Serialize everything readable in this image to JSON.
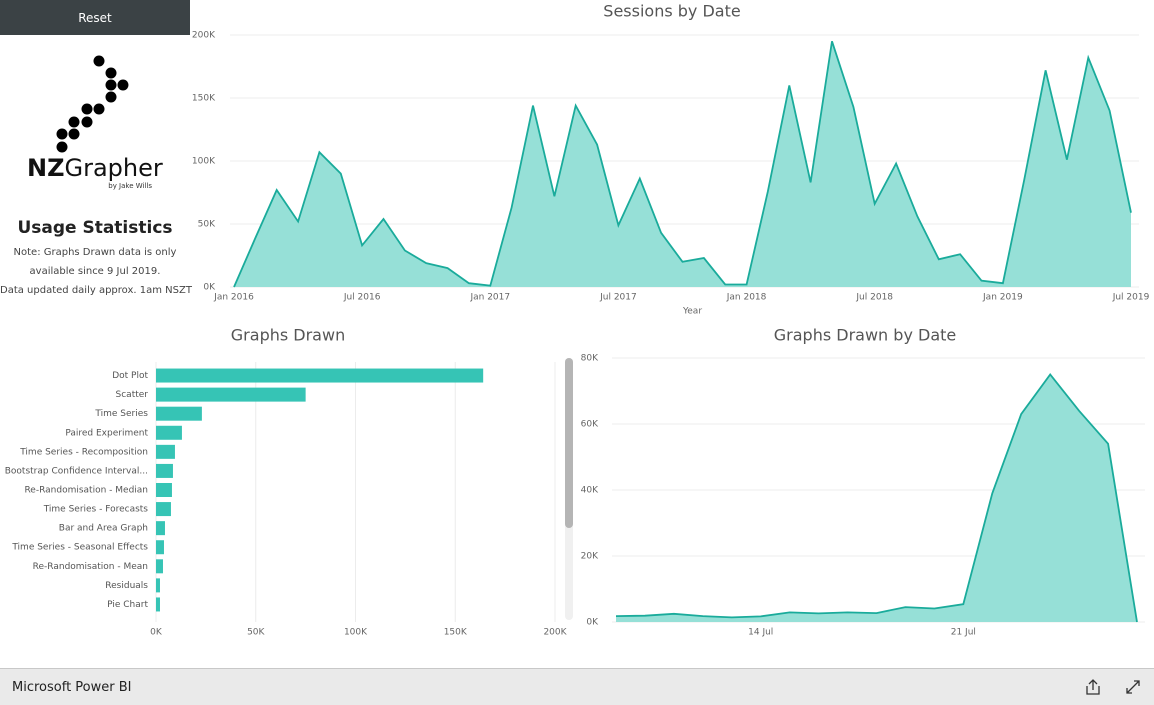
{
  "sidebar": {
    "button": "Reset",
    "logo": {
      "bold": "NZ",
      "rest": "Grapher",
      "byline": "by Jake Wills"
    },
    "heading": "Usage Statistics",
    "notes": [
      "Note: Graphs Drawn data is only",
      "available since 9 Jul 2019.",
      "Data updated daily approx. 1am NSZT"
    ]
  },
  "footer": {
    "title": "Microsoft Power BI"
  },
  "chart_data": [
    {
      "type": "area",
      "title": "Sessions by Date",
      "x_label": "Year",
      "color": "#1aab9b",
      "fill": "#96e0d7",
      "grid": true,
      "x": [
        "2016-01",
        "2016-02",
        "2016-03",
        "2016-04",
        "2016-05",
        "2016-06",
        "2016-07",
        "2016-08",
        "2016-09",
        "2016-10",
        "2016-11",
        "2016-12",
        "2017-01",
        "2017-02",
        "2017-03",
        "2017-04",
        "2017-05",
        "2017-06",
        "2017-07",
        "2017-08",
        "2017-09",
        "2017-10",
        "2017-11",
        "2017-12",
        "2018-01",
        "2018-02",
        "2018-03",
        "2018-04",
        "2018-05",
        "2018-06",
        "2018-07",
        "2018-08",
        "2018-09",
        "2018-10",
        "2018-11",
        "2018-12",
        "2019-01",
        "2019-02",
        "2019-03",
        "2019-04",
        "2019-05",
        "2019-06",
        "2019-07"
      ],
      "values": [
        0,
        39000,
        77000,
        52000,
        107000,
        90000,
        33000,
        54000,
        29000,
        19000,
        15000,
        3000,
        1000,
        63000,
        144000,
        72000,
        144000,
        113000,
        49000,
        86000,
        43000,
        20000,
        23000,
        2000,
        2000,
        76000,
        160000,
        83000,
        195000,
        143000,
        66000,
        98000,
        56000,
        22000,
        26000,
        5000,
        3000,
        85000,
        172000,
        101000,
        182000,
        140000,
        59000
      ],
      "xlim": [
        "2016-01",
        "2019-07"
      ],
      "xticks": [
        {
          "value": "2016-01",
          "label": "Jan 2016"
        },
        {
          "value": "2016-07",
          "label": "Jul 2016"
        },
        {
          "value": "2017-01",
          "label": "Jan 2017"
        },
        {
          "value": "2017-07",
          "label": "Jul 2017"
        },
        {
          "value": "2018-01",
          "label": "Jan 2018"
        },
        {
          "value": "2018-07",
          "label": "Jul 2018"
        },
        {
          "value": "2019-01",
          "label": "Jan 2019"
        },
        {
          "value": "2019-07",
          "label": "Jul 2019"
        }
      ],
      "ylim": [
        0,
        200000
      ],
      "yticks": [
        {
          "value": 0,
          "label": "0K"
        },
        {
          "value": 50000,
          "label": "50K"
        },
        {
          "value": 100000,
          "label": "100K"
        },
        {
          "value": 150000,
          "label": "150K"
        },
        {
          "value": 200000,
          "label": "200K"
        }
      ]
    },
    {
      "type": "hbar",
      "title": "Graphs Drawn",
      "color": "#36c4b5",
      "grid": true,
      "categories": [
        "Dot Plot",
        "Scatter",
        "Time Series",
        "Paired Experiment",
        "Time Series - Recomposition",
        "Bootstrap Confidence Interval...",
        "Re-Randomisation - Median",
        "Time Series - Forecasts",
        "Bar and Area Graph",
        "Time Series - Seasonal Effects",
        "Re-Randomisation - Mean",
        "Residuals",
        "Pie Chart"
      ],
      "values": [
        164000,
        75000,
        23000,
        13000,
        9500,
        8500,
        8000,
        7500,
        4500,
        4000,
        3500,
        2000,
        2000
      ],
      "xlim": [
        0,
        200000
      ],
      "xticks": [
        {
          "value": 0,
          "label": "0K"
        },
        {
          "value": 50000,
          "label": "50K"
        },
        {
          "value": 100000,
          "label": "100K"
        },
        {
          "value": 150000,
          "label": "150K"
        },
        {
          "value": 200000,
          "label": "200K"
        }
      ]
    },
    {
      "type": "area",
      "title": "Graphs Drawn by Date",
      "color": "#1aab9b",
      "fill": "#96e0d7",
      "grid": true,
      "x": [
        9,
        10,
        11,
        12,
        13,
        14,
        15,
        16,
        17,
        18,
        19,
        20,
        21,
        22,
        23,
        24,
        25,
        26,
        27
      ],
      "values": [
        1800,
        1900,
        2500,
        1800,
        1400,
        1700,
        2900,
        2600,
        2900,
        2700,
        4500,
        4100,
        5400,
        39000,
        63000,
        75000,
        64000,
        54000,
        0
      ],
      "xlim": [
        9,
        27
      ],
      "xticks": [
        {
          "value": 14,
          "label": "14 Jul"
        },
        {
          "value": 21,
          "label": "21 Jul"
        }
      ],
      "ylim": [
        0,
        80000
      ],
      "yticks": [
        {
          "value": 0,
          "label": "0K"
        },
        {
          "value": 20000,
          "label": "20K"
        },
        {
          "value": 40000,
          "label": "40K"
        },
        {
          "value": 60000,
          "label": "60K"
        },
        {
          "value": 80000,
          "label": "80K"
        }
      ]
    }
  ]
}
